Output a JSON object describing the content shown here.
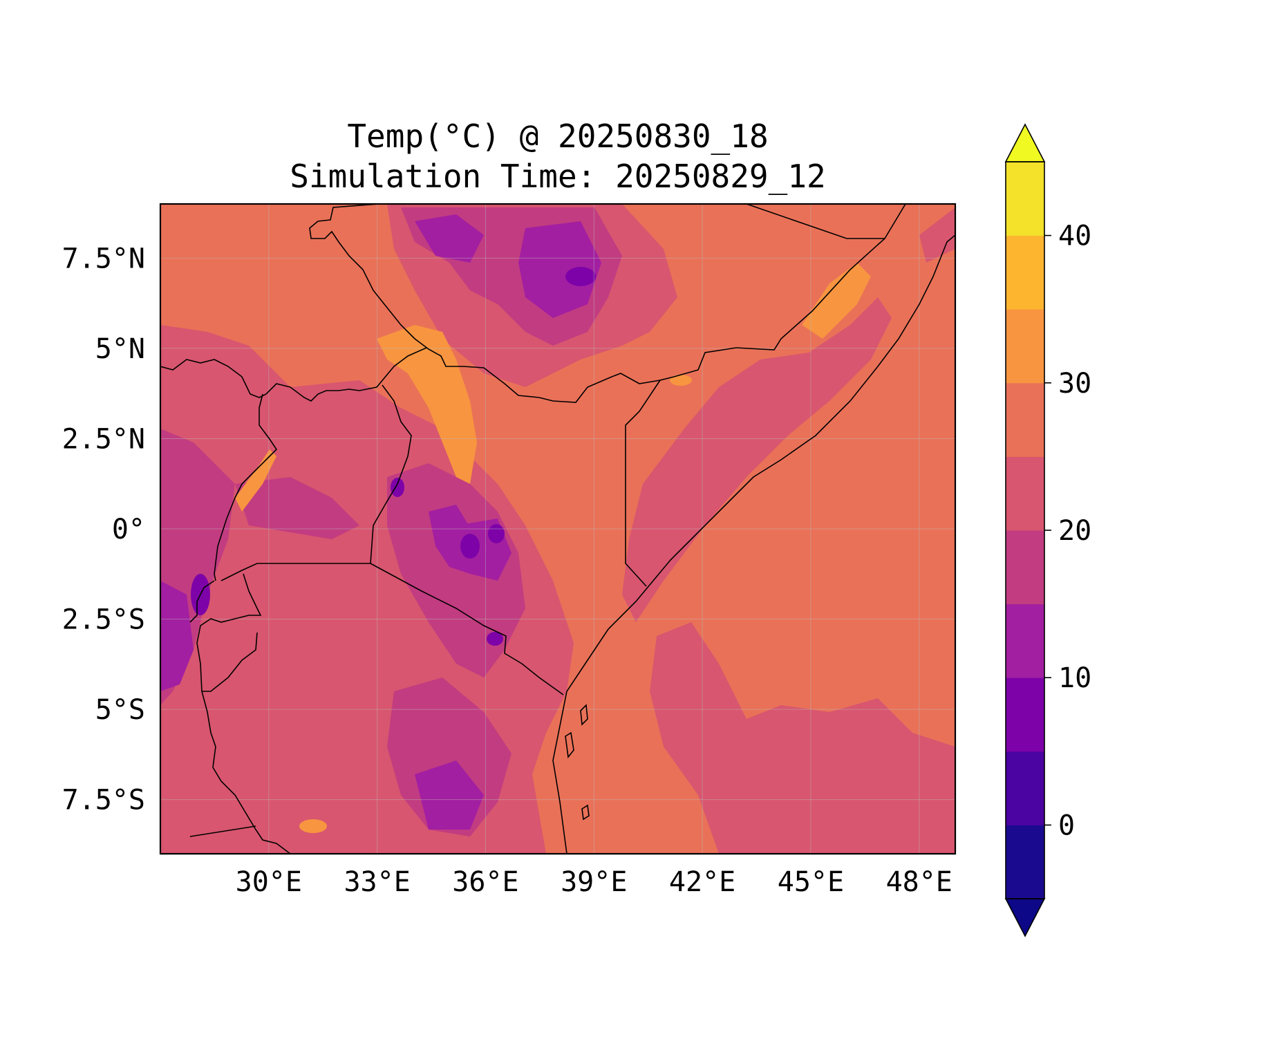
{
  "title": {
    "line1": "Temp(°C) @ 20250830_18",
    "line2": "Simulation Time: 20250829_12"
  },
  "map": {
    "lon_range": [
      27.0,
      49.0
    ],
    "lat_range": [
      -9.0,
      9.0
    ],
    "lon_ticks": [
      {
        "value": 30,
        "label": "30°E"
      },
      {
        "value": 33,
        "label": "33°E"
      },
      {
        "value": 36,
        "label": "36°E"
      },
      {
        "value": 39,
        "label": "39°E"
      },
      {
        "value": 42,
        "label": "42°E"
      },
      {
        "value": 45,
        "label": "45°E"
      },
      {
        "value": 48,
        "label": "48°E"
      }
    ],
    "lat_ticks": [
      {
        "value": 7.5,
        "label": "7.5°N"
      },
      {
        "value": 5,
        "label": "5°N"
      },
      {
        "value": 2.5,
        "label": "2.5°N"
      },
      {
        "value": 0,
        "label": "0°"
      },
      {
        "value": -2.5,
        "label": "2.5°S"
      },
      {
        "value": -5,
        "label": "5°S"
      },
      {
        "value": -7.5,
        "label": "7.5°S"
      }
    ],
    "gridlines": true
  },
  "colorbar": {
    "levels": [
      -5,
      0,
      5,
      10,
      15,
      20,
      25,
      30,
      35,
      40,
      45
    ],
    "colors": [
      "#1a0a8f",
      "#4b03a1",
      "#7d03a8",
      "#a21fa1",
      "#c23c81",
      "#d8566f",
      "#e97158",
      "#f89540",
      "#fdb42f",
      "#f3e12a"
    ],
    "under_color": "#0d0887",
    "over_color": "#f0f921",
    "extend": "both",
    "ticks": [
      {
        "value": 0,
        "label": "0"
      },
      {
        "value": 10,
        "label": "10"
      },
      {
        "value": 20,
        "label": "20"
      },
      {
        "value": 30,
        "label": "30"
      },
      {
        "value": 40,
        "label": "40"
      }
    ]
  },
  "field": {
    "variable": "Temp(°C)",
    "background_color": "#e97158"
  }
}
